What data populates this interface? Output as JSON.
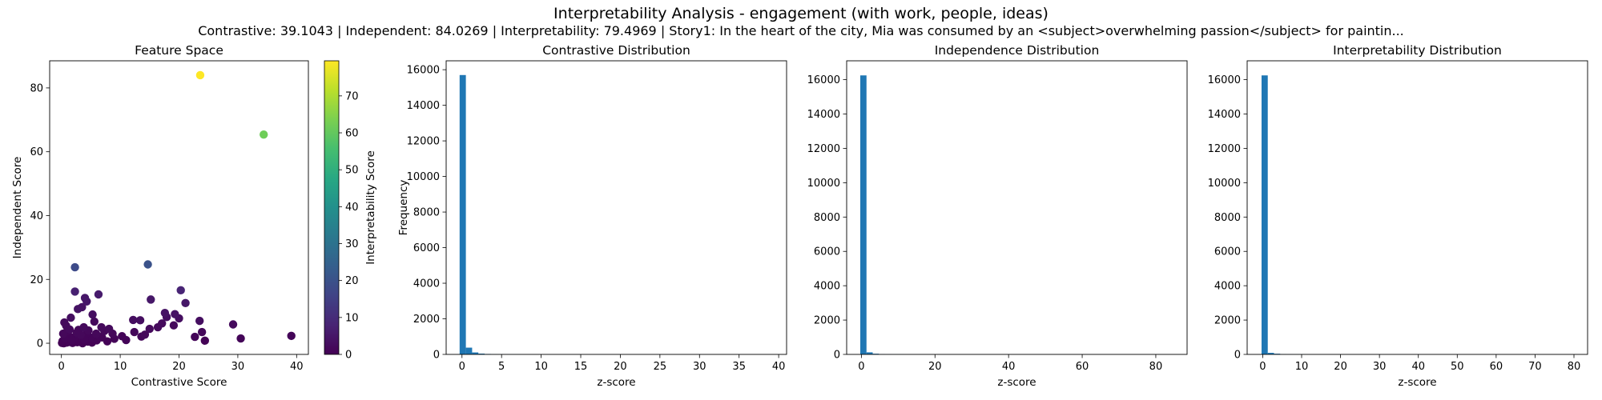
{
  "figure": {
    "title": "Interpretability Analysis - engagement (with work, people, ideas)",
    "subtitle": "Contrastive: 39.1043 | Independent: 84.0269 | Interpretability: 79.4969 | Story1: In the heart of the city, Mia was consumed by an <subject>overwhelming passion</subject> for paintin..."
  },
  "chart_data": [
    {
      "type": "scatter",
      "title": "Feature Space",
      "xlabel": "Contrastive Score",
      "ylabel": "Independent Score",
      "xlim": [
        -2,
        42
      ],
      "ylim": [
        -3.5,
        88.5
      ],
      "xticks": [
        0,
        10,
        20,
        30,
        40
      ],
      "yticks": [
        0,
        20,
        40,
        60,
        80
      ],
      "colormap": "viridis",
      "colorbar": {
        "label": "Interpretability Score",
        "range": [
          0,
          79.5
        ],
        "ticks": [
          0,
          10,
          20,
          30,
          40,
          50,
          60,
          70
        ]
      },
      "points": [
        {
          "x": 23.6,
          "y": 84.0,
          "c": 79.5
        },
        {
          "x": 34.4,
          "y": 65.4,
          "c": 62.0
        },
        {
          "x": 14.7,
          "y": 24.7,
          "c": 20.0
        },
        {
          "x": 2.3,
          "y": 23.8,
          "c": 18.0
        },
        {
          "x": 20.3,
          "y": 16.6,
          "c": 8.0
        },
        {
          "x": 2.3,
          "y": 16.2,
          "c": 7.0
        },
        {
          "x": 6.3,
          "y": 15.3,
          "c": 6.0
        },
        {
          "x": 4.0,
          "y": 14.2,
          "c": 5.0
        },
        {
          "x": 15.2,
          "y": 13.7,
          "c": 5.0
        },
        {
          "x": 4.3,
          "y": 13.1,
          "c": 5.0
        },
        {
          "x": 21.1,
          "y": 12.6,
          "c": 5.0
        },
        {
          "x": 3.5,
          "y": 11.3,
          "c": 4.0
        },
        {
          "x": 2.8,
          "y": 10.7,
          "c": 4.0
        },
        {
          "x": 17.6,
          "y": 9.5,
          "c": 4.0
        },
        {
          "x": 19.3,
          "y": 9.1,
          "c": 4.0
        },
        {
          "x": 5.3,
          "y": 9.0,
          "c": 3.0
        },
        {
          "x": 17.9,
          "y": 8.2,
          "c": 3.0
        },
        {
          "x": 20.0,
          "y": 7.8,
          "c": 3.0
        },
        {
          "x": 1.6,
          "y": 8.0,
          "c": 3.0
        },
        {
          "x": 12.2,
          "y": 7.3,
          "c": 3.0
        },
        {
          "x": 13.4,
          "y": 7.2,
          "c": 3.0
        },
        {
          "x": 23.5,
          "y": 7.0,
          "c": 3.0
        },
        {
          "x": 5.6,
          "y": 6.8,
          "c": 2.0
        },
        {
          "x": 0.5,
          "y": 6.5,
          "c": 2.0
        },
        {
          "x": 17.1,
          "y": 6.2,
          "c": 2.0
        },
        {
          "x": 29.2,
          "y": 5.9,
          "c": 2.0
        },
        {
          "x": 0.8,
          "y": 5.5,
          "c": 2.0
        },
        {
          "x": 19.1,
          "y": 5.6,
          "c": 2.0
        },
        {
          "x": 3.8,
          "y": 5.0,
          "c": 2.0
        },
        {
          "x": 6.8,
          "y": 5.0,
          "c": 2.0
        },
        {
          "x": 16.4,
          "y": 5.0,
          "c": 2.0
        },
        {
          "x": 15.0,
          "y": 4.5,
          "c": 2.0
        },
        {
          "x": 8.1,
          "y": 4.5,
          "c": 2.0
        },
        {
          "x": 1.4,
          "y": 4.3,
          "c": 2.0
        },
        {
          "x": 4.6,
          "y": 4.0,
          "c": 1.5
        },
        {
          "x": 7.3,
          "y": 3.8,
          "c": 1.5
        },
        {
          "x": 12.4,
          "y": 3.5,
          "c": 1.5
        },
        {
          "x": 23.9,
          "y": 3.5,
          "c": 1.5
        },
        {
          "x": 2.6,
          "y": 3.3,
          "c": 1.5
        },
        {
          "x": 0.3,
          "y": 3.0,
          "c": 1.5
        },
        {
          "x": 5.9,
          "y": 3.0,
          "c": 1.5
        },
        {
          "x": 8.7,
          "y": 3.0,
          "c": 1.5
        },
        {
          "x": 14.2,
          "y": 2.7,
          "c": 1.5
        },
        {
          "x": 3.3,
          "y": 2.6,
          "c": 1.5
        },
        {
          "x": 1.1,
          "y": 2.4,
          "c": 1.0
        },
        {
          "x": 39.1,
          "y": 2.3,
          "c": 1.0
        },
        {
          "x": 10.3,
          "y": 2.2,
          "c": 1.0
        },
        {
          "x": 13.6,
          "y": 2.1,
          "c": 1.0
        },
        {
          "x": 22.7,
          "y": 2.0,
          "c": 1.0
        },
        {
          "x": 6.5,
          "y": 2.0,
          "c": 1.0
        },
        {
          "x": 4.9,
          "y": 1.8,
          "c": 1.0
        },
        {
          "x": 30.5,
          "y": 1.5,
          "c": 1.0
        },
        {
          "x": 0.6,
          "y": 1.6,
          "c": 1.0
        },
        {
          "x": 2.1,
          "y": 1.5,
          "c": 1.0
        },
        {
          "x": 9.0,
          "y": 1.4,
          "c": 1.0
        },
        {
          "x": 3.9,
          "y": 1.2,
          "c": 1.0
        },
        {
          "x": 11.0,
          "y": 1.0,
          "c": 1.0
        },
        {
          "x": 1.8,
          "y": 1.0,
          "c": 1.0
        },
        {
          "x": 6.0,
          "y": 0.9,
          "c": 0.5
        },
        {
          "x": 24.4,
          "y": 0.8,
          "c": 0.5
        },
        {
          "x": 0.2,
          "y": 0.7,
          "c": 0.5
        },
        {
          "x": 7.8,
          "y": 0.6,
          "c": 0.5
        },
        {
          "x": 3.1,
          "y": 0.6,
          "c": 0.5
        },
        {
          "x": 4.5,
          "y": 0.5,
          "c": 0.5
        },
        {
          "x": 1.3,
          "y": 0.4,
          "c": 0.5
        },
        {
          "x": 2.7,
          "y": 0.3,
          "c": 0.5
        },
        {
          "x": 5.2,
          "y": 0.2,
          "c": 0.3
        },
        {
          "x": 0.9,
          "y": 0.2,
          "c": 0.3
        },
        {
          "x": 1.9,
          "y": 0.1,
          "c": 0.3
        },
        {
          "x": 0.4,
          "y": 0.0,
          "c": 0.2
        },
        {
          "x": 3.6,
          "y": 0.0,
          "c": 0.2
        },
        {
          "x": 0.1,
          "y": 0.1,
          "c": 0.2
        },
        {
          "x": 2.4,
          "y": 0.4,
          "c": 0.3
        },
        {
          "x": 1.5,
          "y": 2.0,
          "c": 0.8
        },
        {
          "x": 0.7,
          "y": 1.2,
          "c": 0.5
        },
        {
          "x": 4.2,
          "y": 2.9,
          "c": 1.0
        },
        {
          "x": 2.9,
          "y": 4.2,
          "c": 1.5
        },
        {
          "x": 0.9,
          "y": 3.6,
          "c": 1.2
        },
        {
          "x": 5.5,
          "y": 1.5,
          "c": 0.8
        },
        {
          "x": 3.4,
          "y": 1.8,
          "c": 0.8
        },
        {
          "x": 1.2,
          "y": 0.8,
          "c": 0.4
        },
        {
          "x": 6.9,
          "y": 1.8,
          "c": 0.8
        }
      ]
    },
    {
      "type": "bar",
      "title": "Contrastive Distribution",
      "xlabel": "z-score",
      "ylabel": "Frequency",
      "xlim": [
        -2,
        41
      ],
      "ylim": [
        0,
        16500
      ],
      "xticks": [
        0,
        5,
        10,
        15,
        20,
        25,
        30,
        35,
        40
      ],
      "yticks": [
        0,
        2000,
        4000,
        6000,
        8000,
        10000,
        12000,
        14000,
        16000
      ],
      "bin_start": -0.3,
      "bin_width": 0.79,
      "counts": [
        15700,
        380,
        110,
        45,
        25,
        15,
        10,
        6,
        4,
        3,
        2,
        2,
        1,
        1,
        1,
        1,
        1,
        1,
        1,
        1,
        0,
        0,
        1,
        0,
        0,
        0,
        0,
        0,
        0,
        1,
        0,
        0,
        0,
        0,
        0,
        0,
        0,
        0,
        0,
        0,
        0,
        0,
        0,
        0,
        0,
        0,
        0,
        0,
        0,
        1
      ]
    },
    {
      "type": "bar",
      "title": "Independence Distribution",
      "xlabel": "z-score",
      "ylabel": "",
      "xlim": [
        -4,
        88.5
      ],
      "ylim": [
        0,
        17100
      ],
      "xticks": [
        0,
        20,
        40,
        60,
        80
      ],
      "yticks": [
        0,
        2000,
        4000,
        6000,
        8000,
        10000,
        12000,
        14000,
        16000
      ],
      "bin_start": -0.3,
      "bin_width": 1.69,
      "counts": [
        16250,
        120,
        40,
        18,
        8,
        4,
        3,
        2,
        2,
        1,
        1,
        1,
        1,
        1,
        1,
        0,
        0,
        0,
        0,
        0,
        0,
        0,
        0,
        0,
        0,
        0,
        0,
        0,
        0,
        0,
        0,
        0,
        0,
        0,
        0,
        0,
        0,
        0,
        1,
        0,
        0,
        0,
        0,
        0,
        0,
        0,
        0,
        0,
        0,
        1
      ]
    },
    {
      "type": "bar",
      "title": "Interpretability Distribution",
      "xlabel": "z-score",
      "ylabel": "",
      "xlim": [
        -4,
        83.5
      ],
      "ylim": [
        0,
        17100
      ],
      "xticks": [
        0,
        10,
        20,
        30,
        40,
        50,
        60,
        70,
        80
      ],
      "yticks": [
        0,
        2000,
        4000,
        6000,
        8000,
        10000,
        12000,
        14000,
        16000
      ],
      "bin_start": -0.3,
      "bin_width": 1.596,
      "counts": [
        16250,
        90,
        40,
        15,
        8,
        4,
        3,
        2,
        2,
        1,
        1,
        1,
        1,
        1,
        0,
        0,
        0,
        0,
        0,
        0,
        0,
        0,
        0,
        0,
        0,
        0,
        0,
        0,
        0,
        0,
        0,
        0,
        0,
        0,
        0,
        0,
        0,
        0,
        1,
        0,
        0,
        0,
        0,
        0,
        0,
        0,
        0,
        0,
        0,
        1
      ]
    }
  ]
}
